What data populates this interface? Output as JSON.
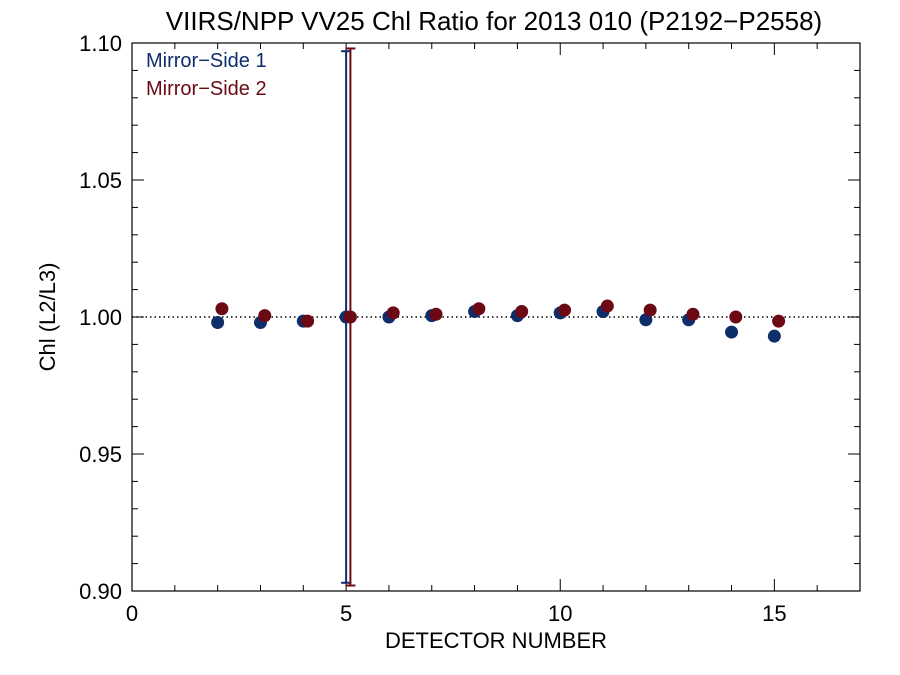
{
  "chart_data": {
    "type": "scatter",
    "title": "VIIRS/NPP VV25 Chl Ratio for 2013 010 (P2192−P2558)",
    "xlabel": "DETECTOR NUMBER",
    "ylabel": "Chl (L2/L3)",
    "xlim": [
      0,
      17
    ],
    "ylim": [
      0.9,
      1.1
    ],
    "x_ticks": [
      0,
      5,
      10,
      15
    ],
    "x_tick_labels": [
      "0",
      "5",
      "10",
      "15"
    ],
    "y_ticks": [
      0.9,
      0.95,
      1.0,
      1.05,
      1.1
    ],
    "y_tick_labels": [
      "0.90",
      "0.95",
      "1.00",
      "1.05",
      "1.10"
    ],
    "reference_line": 1.0,
    "legend_position": "top-left",
    "grid": false,
    "series": [
      {
        "name": "Mirror−Side 1",
        "color": "#0d2d6b",
        "x": [
          2,
          3,
          4,
          5,
          6,
          7,
          8,
          9,
          10,
          11,
          12,
          13,
          14,
          15
        ],
        "y": [
          0.998,
          0.998,
          0.9985,
          1.0,
          1.0,
          1.0005,
          1.002,
          1.0005,
          1.0015,
          1.002,
          0.999,
          0.999,
          0.9945,
          0.993
        ],
        "error_bar": {
          "x": 5,
          "low": 0.903,
          "high": 1.097
        }
      },
      {
        "name": "Mirror−Side 2",
        "color": "#6b0a14",
        "x": [
          2.1,
          3.1,
          4.1,
          5.1,
          6.1,
          7.1,
          8.1,
          9.1,
          10.1,
          11.1,
          12.1,
          13.1,
          14.1,
          15.1
        ],
        "y": [
          1.003,
          1.0005,
          0.9985,
          1.0,
          1.0015,
          1.001,
          1.003,
          1.002,
          1.0025,
          1.004,
          1.0025,
          1.001,
          1.0,
          0.9985
        ],
        "error_bar": {
          "x": 5.1,
          "low": 0.902,
          "high": 1.098
        }
      }
    ]
  }
}
